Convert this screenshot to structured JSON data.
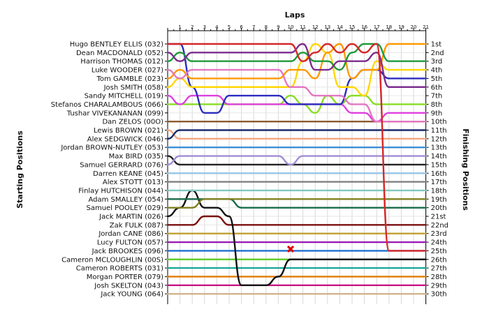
{
  "chart_data": {
    "type": "line",
    "title": "",
    "xlabel": "Laps",
    "ylabel_left": "Starting Positions",
    "ylabel_right": "Finishing Positions",
    "laps": [
      "1",
      "2",
      "3",
      "4",
      "5",
      "6",
      "7",
      "8",
      "9",
      "10",
      "11",
      "12",
      "13",
      "14",
      "15",
      "16",
      "17",
      "18",
      "19",
      "20",
      "21"
    ],
    "ylim": [
      1,
      30
    ],
    "grid": true,
    "drivers": [
      "Hugo BENTLEY ELLIS (032)",
      "Dean MACDONALD (052)",
      "Harrison THOMAS (012)",
      "Luke WOODER (027)",
      "Tom GAMBLE (023)",
      "Josh SMITH (058)",
      "Sandy MITCHELL (019)",
      "Stefanos CHARALAMBOUS (066)",
      "Tushar VIVEKANANAN (099)",
      "Dan ZELOS (00O)",
      "Lewis BROWN (021)",
      "Alex SEDGWICK (046)",
      "Jordan BROWN-NUTLEY (053)",
      "Max BIRD (035)",
      "Samuel GERRARD (076)",
      "Darren KEANE (045)",
      "Alex STOTT (013)",
      "Finlay HUTCHISON (044)",
      "Adam SMALLEY (054)",
      "Samuel POOLEY (029)",
      "Jack MARTIN (026)",
      "Zak FULK (087)",
      "Jordan CANE (086)",
      "Lucy FULTON (057)",
      "Jack BROOKES (096)",
      "Cameron MCLOUGHLIN (00S)",
      "Cameron ROBERTS (031)",
      "Morgan PORTER (079)",
      "Josh SKELTON (043)",
      "Jack YOUNG (064)"
    ],
    "finishing_labels": [
      "1st",
      "2nd",
      "3rd",
      "4th",
      "5th",
      "6th",
      "7th",
      "8th",
      "9th",
      "10th",
      "11th",
      "12th",
      "13th",
      "14th",
      "15th",
      "16th",
      "17th",
      "18th",
      "19th",
      "20th",
      "21st",
      "22nd",
      "23rd",
      "24th",
      "25th",
      "26th",
      "27th",
      "28th",
      "29th",
      "30th"
    ],
    "series": [
      {
        "color": "#d62728",
        "positions": [
          1,
          1,
          1,
          1,
          1,
          1,
          1,
          1,
          1,
          1,
          1,
          3,
          2,
          1,
          2,
          1,
          2,
          1,
          25,
          25,
          25,
          25
        ]
      },
      {
        "color": "#7b2d8e",
        "positions": [
          2,
          3,
          2,
          2,
          2,
          2,
          2,
          2,
          2,
          2,
          2,
          1,
          4,
          4,
          3,
          3,
          3,
          2,
          6,
          6,
          6,
          6
        ]
      },
      {
        "color": "#1f9a3a",
        "positions": [
          3,
          2,
          3,
          3,
          3,
          3,
          3,
          3,
          3,
          3,
          3,
          2,
          3,
          3,
          4,
          2,
          1,
          1,
          3,
          3,
          3,
          3
        ]
      },
      {
        "color": "#e377c2",
        "positions": [
          4,
          5,
          4,
          4,
          4,
          4,
          4,
          4,
          4,
          4,
          6,
          6,
          7,
          7,
          7,
          8,
          8,
          10,
          10,
          10,
          10,
          10
        ]
      },
      {
        "color": "#ff9900",
        "positions": [
          5,
          4,
          5,
          5,
          5,
          5,
          5,
          5,
          5,
          5,
          4,
          4,
          5,
          2,
          1,
          5,
          4,
          4,
          1,
          1,
          1,
          1
        ]
      },
      {
        "color": "#ffd700",
        "positions": [
          6,
          5,
          6,
          6,
          6,
          6,
          6,
          6,
          6,
          6,
          6,
          3,
          1,
          2,
          6,
          6,
          7,
          3,
          4,
          4,
          4,
          4
        ]
      },
      {
        "color": "#2c2cbf",
        "positions": [
          1,
          1,
          6,
          9,
          9,
          7,
          7,
          7,
          7,
          7,
          8,
          8,
          8,
          8,
          8,
          5,
          4,
          4,
          5,
          5,
          5,
          5
        ]
      },
      {
        "color": "#e040e0",
        "positions": [
          7,
          8,
          7,
          7,
          7,
          8,
          8,
          8,
          8,
          8,
          8,
          8,
          8,
          8,
          8,
          9,
          9,
          10,
          9,
          9,
          9,
          9
        ]
      },
      {
        "color": "#88dd22",
        "positions": [
          8,
          8,
          8,
          8,
          8,
          8,
          8,
          8,
          8,
          8,
          7,
          8,
          9,
          7,
          8,
          7,
          7,
          8,
          8,
          8,
          8,
          8
        ]
      },
      {
        "color": "#8b5a2b",
        "positions": [
          10,
          10,
          10,
          10,
          10,
          10,
          10,
          10,
          10,
          10,
          10,
          10,
          10,
          10,
          10,
          10,
          10,
          10,
          10,
          10,
          10,
          10
        ]
      },
      {
        "color": "#1a2a6c",
        "positions": [
          12,
          11,
          11,
          11,
          11,
          11,
          11,
          11,
          11,
          11,
          11,
          11,
          11,
          11,
          11,
          11,
          11,
          11,
          11,
          11,
          11,
          11
        ]
      },
      {
        "color": "#f4a582",
        "positions": [
          11,
          12,
          12,
          12,
          12,
          12,
          12,
          12,
          12,
          12,
          12,
          12,
          12,
          12,
          12,
          12,
          12,
          12,
          12,
          12,
          12,
          12
        ]
      },
      {
        "color": "#3b8fd9",
        "positions": [
          13,
          13,
          13,
          13,
          13,
          13,
          13,
          13,
          13,
          13,
          13,
          13,
          13,
          13,
          13,
          13,
          13,
          13,
          13,
          13,
          13,
          13
        ]
      },
      {
        "color": "#a08cd6",
        "positions": [
          15,
          14,
          14,
          14,
          14,
          14,
          14,
          14,
          14,
          14,
          15,
          14,
          14,
          14,
          14,
          14,
          14,
          14,
          14,
          14,
          14,
          14
        ]
      },
      {
        "color": "#222222",
        "positions": [
          14,
          15,
          15,
          15,
          15,
          15,
          15,
          15,
          15,
          15,
          15,
          15,
          15,
          15,
          15,
          15,
          15,
          15,
          15,
          15,
          15,
          15
        ]
      },
      {
        "color": "#99c8e8",
        "positions": [
          16,
          16,
          16,
          16,
          16,
          16,
          16,
          16,
          16,
          16,
          16,
          16,
          16,
          16,
          16,
          16,
          16,
          16,
          16,
          16,
          16,
          16
        ]
      },
      {
        "color": "#808080",
        "positions": [
          17,
          17,
          17,
          17,
          17,
          17,
          17,
          17,
          17,
          17,
          17,
          17,
          17,
          17,
          17,
          17,
          17,
          17,
          17,
          17,
          17,
          17
        ]
      },
      {
        "color": "#7fc8c0",
        "positions": [
          18,
          18,
          18,
          18,
          18,
          18,
          18,
          18,
          18,
          18,
          18,
          18,
          18,
          18,
          18,
          18,
          18,
          18,
          18,
          18,
          18,
          18
        ]
      },
      {
        "color": "#808020",
        "positions": [
          20,
          20,
          20,
          19,
          19,
          19,
          19,
          19,
          19,
          19,
          19,
          19,
          19,
          19,
          19,
          19,
          19,
          19,
          19,
          19,
          19,
          19
        ]
      },
      {
        "color": "#1a6b4a",
        "positions": [
          19,
          19,
          19,
          19,
          19,
          19,
          20,
          20,
          20,
          20,
          20,
          20,
          20,
          20,
          20,
          20,
          20,
          20,
          20,
          20,
          20,
          20
        ]
      },
      {
        "color": "#111111",
        "positions": [
          21,
          20,
          18,
          20,
          20,
          21,
          29,
          29,
          29,
          28,
          26,
          26,
          26,
          26,
          26,
          26,
          26,
          26,
          26,
          26,
          26,
          26
        ]
      },
      {
        "color": "#7a0f0f",
        "positions": [
          22,
          22,
          22,
          21,
          21,
          22,
          22,
          22,
          22,
          22,
          22,
          22,
          22,
          22,
          22,
          22,
          22,
          22,
          22,
          22,
          22,
          22
        ]
      },
      {
        "color": "#c0a030",
        "positions": [
          23,
          23,
          23,
          23,
          23,
          23,
          23,
          23,
          23,
          23,
          23,
          23,
          23,
          23,
          23,
          23,
          23,
          23,
          23,
          23,
          23,
          23
        ]
      },
      {
        "color": "#9b1bb5",
        "positions": [
          24,
          24,
          24,
          24,
          24,
          24,
          24,
          24,
          24,
          24,
          24,
          24,
          24,
          24,
          24,
          24,
          24,
          24,
          24,
          24,
          24,
          24
        ]
      },
      {
        "color": "#1f6fd0",
        "positions": [
          25,
          25,
          25,
          25,
          25,
          25,
          25,
          25,
          25,
          25,
          25,
          25,
          25,
          25,
          25,
          25,
          25,
          25,
          25,
          25,
          25,
          25
        ]
      },
      {
        "color": "#66cc33",
        "positions": [
          26,
          26,
          26,
          26,
          26,
          26,
          26,
          26,
          26,
          26,
          26,
          26,
          26,
          26,
          26,
          26,
          26,
          26,
          26,
          26,
          26,
          26
        ]
      },
      {
        "color": "#1aa89a",
        "positions": [
          27,
          27,
          27,
          27,
          27,
          27,
          27,
          27,
          27,
          27,
          27,
          27,
          27,
          27,
          27,
          27,
          27,
          27,
          27,
          27,
          27,
          27
        ]
      },
      {
        "color": "#e07b00",
        "positions": [
          28,
          28,
          28,
          28,
          28,
          28,
          28,
          28,
          28,
          28,
          28,
          28,
          28,
          28,
          28,
          28,
          28,
          28,
          28,
          28,
          28,
          28
        ]
      },
      {
        "color": "#c71585",
        "positions": [
          29,
          29,
          29,
          29,
          29,
          29,
          29,
          29,
          29,
          29,
          29,
          29,
          29,
          29,
          29,
          29,
          29,
          29,
          29,
          29,
          29,
          29
        ]
      },
      {
        "color": "#d2b48c",
        "positions": [
          30,
          30,
          30,
          30,
          30,
          30,
          30,
          30,
          30,
          30,
          30,
          30,
          30,
          30,
          30,
          30,
          30,
          30,
          30,
          30,
          30,
          30
        ]
      }
    ]
  }
}
